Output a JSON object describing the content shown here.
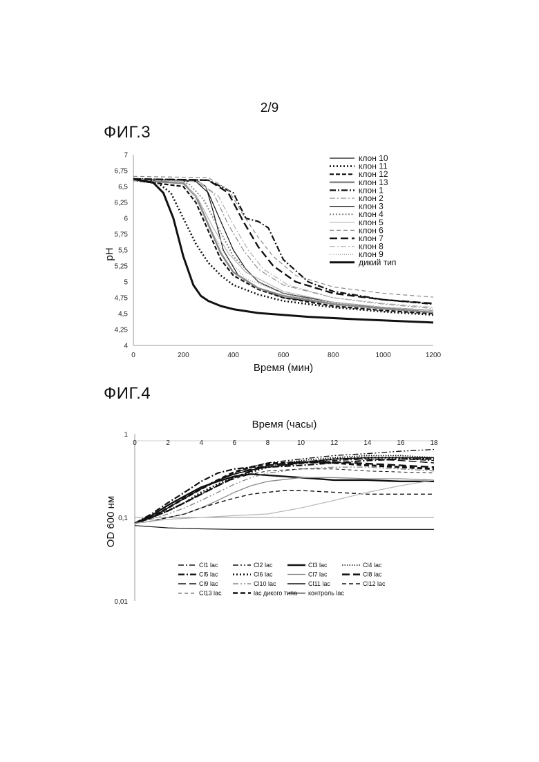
{
  "page": {
    "number": "2/9"
  },
  "fig3": {
    "label": "ФИГ.3",
    "chart_data": {
      "type": "line",
      "xlabel": "Время (мин)",
      "ylabel": "pH",
      "xlim": [
        0,
        1200
      ],
      "ylim": [
        4,
        7
      ],
      "xticks": [
        "0",
        "200",
        "400",
        "600",
        "800",
        "1000",
        "1200"
      ],
      "yticks": [
        "4",
        "4,25",
        "4,5",
        "4,75",
        "5",
        "5,25",
        "5,5",
        "5,75",
        "6",
        "6,25",
        "6,5",
        "6,75",
        "7"
      ],
      "legend_position": "top-right",
      "series": [
        {
          "name": "клон 10",
          "style": "solid-thin",
          "x": [
            0,
            200,
            260,
            290,
            320,
            360,
            420,
            500,
            600,
            800,
            1000,
            1200
          ],
          "y": [
            6.62,
            6.6,
            6.58,
            6.5,
            6.1,
            5.5,
            5.1,
            4.9,
            4.75,
            4.65,
            4.6,
            4.55
          ]
        },
        {
          "name": "клон 11",
          "style": "dotted-bold",
          "x": [
            0,
            100,
            150,
            200,
            250,
            300,
            350,
            400,
            500,
            600,
            800,
            1000,
            1200
          ],
          "y": [
            6.6,
            6.55,
            6.4,
            6.0,
            5.6,
            5.3,
            5.1,
            4.95,
            4.8,
            4.7,
            4.6,
            4.53,
            4.48
          ]
        },
        {
          "name": "клон 12",
          "style": "dashed-bold",
          "x": [
            0,
            200,
            250,
            300,
            350,
            400,
            500,
            600,
            800,
            1000,
            1200
          ],
          "y": [
            6.6,
            6.5,
            6.25,
            5.8,
            5.35,
            5.1,
            4.88,
            4.75,
            4.62,
            4.55,
            4.5
          ]
        },
        {
          "name": "клон 13",
          "style": "solid-gray-thick",
          "x": [
            0,
            200,
            250,
            300,
            350,
            400,
            500,
            600,
            800,
            1000,
            1200
          ],
          "y": [
            6.6,
            6.55,
            6.35,
            5.9,
            5.45,
            5.15,
            4.9,
            4.78,
            4.65,
            4.58,
            4.52
          ]
        },
        {
          "name": "клон 1",
          "style": "dashdot-bold",
          "x": [
            0,
            300,
            400,
            450,
            500,
            540,
            600,
            700,
            800,
            1000,
            1200
          ],
          "y": [
            6.62,
            6.6,
            6.4,
            6.0,
            5.95,
            5.85,
            5.35,
            5.0,
            4.85,
            4.72,
            4.65
          ]
        },
        {
          "name": "клон 2",
          "style": "dashdot-gray",
          "x": [
            0,
            250,
            320,
            380,
            440,
            500,
            600,
            800,
            1000,
            1200
          ],
          "y": [
            6.6,
            6.58,
            6.4,
            5.9,
            5.5,
            5.2,
            4.95,
            4.75,
            4.65,
            4.58
          ]
        },
        {
          "name": "клон 3",
          "style": "solid-thin",
          "x": [
            0,
            250,
            300,
            350,
            400,
            450,
            500,
            600,
            800,
            1000,
            1200
          ],
          "y": [
            6.6,
            6.58,
            6.4,
            5.95,
            5.5,
            5.2,
            5.0,
            4.82,
            4.68,
            4.6,
            4.55
          ]
        },
        {
          "name": "клон 4",
          "style": "dotted-gray",
          "x": [
            0,
            220,
            280,
            340,
            400,
            500,
            600,
            800,
            1000,
            1200
          ],
          "y": [
            6.6,
            6.55,
            6.3,
            5.85,
            5.4,
            5.0,
            4.82,
            4.66,
            4.58,
            4.52
          ]
        },
        {
          "name": "клон 5",
          "style": "solid-light",
          "x": [
            0,
            200,
            260,
            320,
            380,
            450,
            600,
            800,
            1000,
            1200
          ],
          "y": [
            6.62,
            6.58,
            6.3,
            5.85,
            5.45,
            5.15,
            4.85,
            4.68,
            4.6,
            4.55
          ]
        },
        {
          "name": "клон 6",
          "style": "dashed-gray",
          "x": [
            0,
            300,
            380,
            440,
            500,
            560,
            650,
            800,
            1000,
            1200
          ],
          "y": [
            6.66,
            6.64,
            6.45,
            6.05,
            5.7,
            5.4,
            5.1,
            4.92,
            4.82,
            4.76
          ]
        },
        {
          "name": "клон 7",
          "style": "longdash-bold",
          "x": [
            0,
            300,
            380,
            440,
            500,
            560,
            650,
            800,
            1000,
            1200
          ],
          "y": [
            6.62,
            6.6,
            6.4,
            5.95,
            5.55,
            5.25,
            5.0,
            4.82,
            4.72,
            4.66
          ]
        },
        {
          "name": "клон 8",
          "style": "dashdot-light",
          "x": [
            0,
            260,
            340,
            400,
            460,
            520,
            620,
            800,
            1000,
            1200
          ],
          "y": [
            6.6,
            6.58,
            6.35,
            5.9,
            5.5,
            5.2,
            4.95,
            4.75,
            4.66,
            4.6
          ]
        },
        {
          "name": "клон 9",
          "style": "dotted-fine",
          "x": [
            0,
            200,
            260,
            320,
            380,
            450,
            600,
            800,
            1000,
            1200
          ],
          "y": [
            6.6,
            6.56,
            6.25,
            5.75,
            5.35,
            5.05,
            4.82,
            4.65,
            4.57,
            4.52
          ]
        },
        {
          "name": "дикий тип",
          "style": "solid-thick",
          "x": [
            0,
            80,
            120,
            160,
            200,
            240,
            270,
            300,
            350,
            400,
            500,
            700,
            900,
            1200
          ],
          "y": [
            6.62,
            6.56,
            6.4,
            6.0,
            5.4,
            4.95,
            4.78,
            4.7,
            4.62,
            4.57,
            4.51,
            4.45,
            4.41,
            4.36
          ]
        }
      ]
    }
  },
  "fig4": {
    "label": "ФИГ.4",
    "chart_data": {
      "type": "line",
      "title": "Время (часы)",
      "xlabel": "",
      "ylabel": "OD 600 нм",
      "xlim": [
        0,
        18
      ],
      "ylim": [
        0.01,
        1
      ],
      "yscale": "log",
      "xticks": [
        "0",
        "2",
        "4",
        "6",
        "8",
        "10",
        "12",
        "14",
        "16",
        "18"
      ],
      "yticks": [
        "0,01",
        "0,1",
        "1"
      ],
      "legend_position": "bottom",
      "series": [
        {
          "name": "Cl1 lac",
          "style": "dashdot",
          "x": [
            0,
            1,
            2,
            3,
            4,
            5,
            6,
            7,
            8,
            10,
            12,
            14,
            16,
            18
          ],
          "y": [
            0.085,
            0.1,
            0.13,
            0.17,
            0.22,
            0.28,
            0.33,
            0.37,
            0.4,
            0.44,
            0.48,
            0.5,
            0.5,
            0.48
          ]
        },
        {
          "name": "Cl2 lac",
          "style": "dashdotdot",
          "x": [
            0,
            1,
            2,
            3,
            4,
            5,
            6,
            7,
            8,
            10,
            12,
            14,
            16,
            18
          ],
          "y": [
            0.085,
            0.1,
            0.13,
            0.17,
            0.22,
            0.28,
            0.34,
            0.4,
            0.45,
            0.5,
            0.55,
            0.58,
            0.62,
            0.65
          ]
        },
        {
          "name": "Cl3 lac",
          "style": "solid-bold",
          "x": [
            0,
            1,
            2,
            3,
            4,
            5,
            6,
            7,
            8,
            10,
            12,
            14,
            16,
            18
          ],
          "y": [
            0.085,
            0.105,
            0.14,
            0.18,
            0.23,
            0.27,
            0.31,
            0.33,
            0.32,
            0.3,
            0.28,
            0.28,
            0.27,
            0.27
          ]
        },
        {
          "name": "Cl4 lac",
          "style": "dotted",
          "x": [
            0,
            1,
            2,
            3,
            4,
            5,
            6,
            7,
            8,
            10,
            12,
            14,
            16,
            18
          ],
          "y": [
            0.085,
            0.1,
            0.12,
            0.15,
            0.19,
            0.24,
            0.3,
            0.36,
            0.42,
            0.48,
            0.52,
            0.55,
            0.55,
            0.52
          ]
        },
        {
          "name": "Cl5 lac",
          "style": "dashdot-bold",
          "x": [
            0,
            1,
            2,
            3,
            4,
            5,
            6,
            7,
            8,
            10,
            12,
            14,
            16,
            18
          ],
          "y": [
            0.085,
            0.11,
            0.15,
            0.2,
            0.27,
            0.34,
            0.38,
            0.4,
            0.4,
            0.42,
            0.45,
            0.48,
            0.5,
            0.5
          ]
        },
        {
          "name": "Cl6 lac",
          "style": "dotted-bold",
          "x": [
            0,
            1,
            2,
            3,
            4,
            5,
            6,
            7,
            8,
            10,
            12,
            14,
            16,
            18
          ],
          "y": [
            0.085,
            0.1,
            0.12,
            0.15,
            0.2,
            0.25,
            0.3,
            0.35,
            0.4,
            0.45,
            0.5,
            0.52,
            0.52,
            0.5
          ]
        },
        {
          "name": "Cl7 lac",
          "style": "solid-gray",
          "x": [
            0,
            1,
            2,
            3,
            4,
            5,
            6,
            7,
            8,
            10,
            12,
            14,
            16,
            18
          ],
          "y": [
            0.085,
            0.09,
            0.1,
            0.11,
            0.13,
            0.16,
            0.2,
            0.24,
            0.27,
            0.3,
            0.3,
            0.29,
            0.29,
            0.28
          ]
        },
        {
          "name": "Cl8 lac",
          "style": "longdash-bold",
          "x": [
            0,
            1,
            2,
            3,
            4,
            5,
            6,
            7,
            8,
            10,
            12,
            14,
            16,
            18
          ],
          "y": [
            0.085,
            0.1,
            0.12,
            0.15,
            0.19,
            0.24,
            0.3,
            0.36,
            0.42,
            0.46,
            0.46,
            0.44,
            0.42,
            0.4
          ]
        },
        {
          "name": "Cl9 lac",
          "style": "longdash",
          "x": [
            0,
            1,
            2,
            3,
            4,
            5,
            6,
            7,
            8,
            10,
            12,
            14,
            16,
            18
          ],
          "y": [
            0.085,
            0.1,
            0.13,
            0.17,
            0.22,
            0.28,
            0.33,
            0.38,
            0.42,
            0.46,
            0.5,
            0.5,
            0.48,
            0.45
          ]
        },
        {
          "name": "Cl10 lac",
          "style": "dashdotdot-gray",
          "x": [
            0,
            1,
            2,
            3,
            4,
            5,
            6,
            7,
            8,
            10,
            12,
            14,
            16,
            18
          ],
          "y": [
            0.085,
            0.095,
            0.11,
            0.13,
            0.16,
            0.2,
            0.25,
            0.3,
            0.34,
            0.38,
            0.4,
            0.4,
            0.38,
            0.36
          ]
        },
        {
          "name": "Cl11 lac",
          "style": "solid",
          "x": [
            0,
            1,
            2,
            3,
            4,
            5,
            6,
            7,
            8,
            10,
            12,
            14,
            16,
            18
          ],
          "y": [
            0.085,
            0.1,
            0.13,
            0.17,
            0.22,
            0.28,
            0.33,
            0.37,
            0.4,
            0.45,
            0.5,
            0.52,
            0.52,
            0.52
          ]
        },
        {
          "name": "Cl12 lac",
          "style": "dashed",
          "x": [
            0,
            1,
            2,
            3,
            4,
            5,
            6,
            7,
            8,
            9,
            10,
            12,
            14,
            16,
            18
          ],
          "y": [
            0.085,
            0.09,
            0.1,
            0.11,
            0.13,
            0.15,
            0.17,
            0.19,
            0.2,
            0.21,
            0.21,
            0.2,
            0.19,
            0.19,
            0.19
          ]
        },
        {
          "name": "Cl13 lac",
          "style": "dashed-fine",
          "x": [
            0,
            1,
            2,
            3,
            4,
            5,
            6,
            7,
            8,
            10,
            12,
            14,
            16,
            18
          ],
          "y": [
            0.085,
            0.1,
            0.12,
            0.15,
            0.19,
            0.24,
            0.29,
            0.33,
            0.36,
            0.38,
            0.38,
            0.36,
            0.35,
            0.34
          ]
        },
        {
          "name": "lac дикого типа",
          "style": "dashed-thick",
          "x": [
            0,
            1,
            2,
            3,
            4,
            5,
            6,
            7,
            8,
            10,
            12,
            14,
            16,
            18
          ],
          "y": [
            0.085,
            0.1,
            0.13,
            0.17,
            0.22,
            0.28,
            0.35,
            0.4,
            0.44,
            0.46,
            0.45,
            0.42,
            0.4,
            0.38
          ]
        },
        {
          "name": "контроль lac",
          "style": "solid-thin",
          "x": [
            0,
            2,
            4,
            6,
            8,
            10,
            12,
            14,
            16,
            18
          ],
          "y": [
            0.08,
            0.075,
            0.073,
            0.072,
            0.072,
            0.072,
            0.072,
            0.072,
            0.072,
            0.072
          ]
        },
        {
          "name": "",
          "style": "solid-lightgray",
          "x": [
            0,
            2,
            4,
            6,
            8,
            10,
            12,
            14,
            16,
            18
          ],
          "y": [
            0.085,
            0.095,
            0.1,
            0.105,
            0.11,
            0.13,
            0.16,
            0.2,
            0.24,
            0.28
          ]
        }
      ]
    }
  },
  "colors": {
    "ink": "#111111",
    "gray": "#8a8a8a",
    "light": "#b5b5b5"
  }
}
